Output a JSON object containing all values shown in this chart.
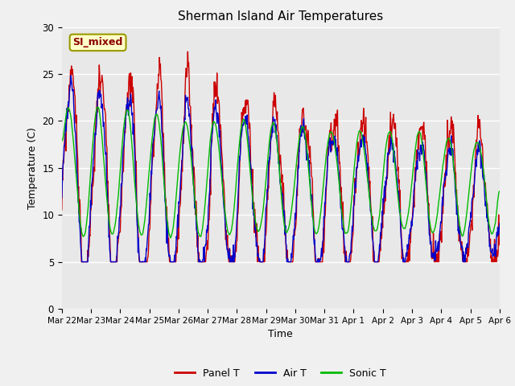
{
  "title": "Sherman Island Air Temperatures",
  "ylabel": "Temperature (C)",
  "xlabel": "Time",
  "annotation": "SI_mixed",
  "ylim": [
    0,
    30
  ],
  "yticks": [
    0,
    5,
    10,
    15,
    20,
    25,
    30
  ],
  "ax_bg_color": "#e8e8e8",
  "fig_bg_color": "#f0f0f0",
  "panel_color": "#cc0000",
  "air_color": "#0000cc",
  "sonic_color": "#00bb00",
  "line_width": 1.0,
  "xtick_labels": [
    "Mar 22",
    "Mar 23",
    "Mar 24",
    "Mar 25",
    "Mar 26",
    "Mar 27",
    "Mar 28",
    "Mar 29",
    "Mar 30",
    "Mar 31",
    "Apr 1",
    "Apr 2",
    "Apr 3",
    "Apr 4",
    "Apr 5",
    "Apr 6"
  ],
  "seed": 99,
  "n_points": 960
}
